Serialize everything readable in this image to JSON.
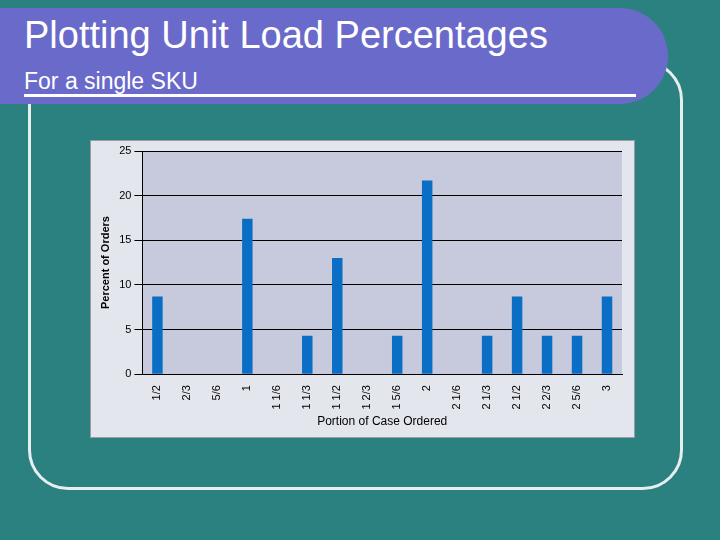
{
  "chart_data": {
    "type": "bar",
    "title": "Plotting Unit Load Percentages",
    "subtitle": "For a single SKU",
    "x_label": "Portion of Case Ordered",
    "y_label": "Percent of Orders",
    "categories": [
      "1/2",
      "2/3",
      "5/6",
      "1",
      "1 1/6",
      "1 1/3",
      "1 1/2",
      "1 2/3",
      "1 5/6",
      "2",
      "2 1/6",
      "2 1/3",
      "2 1/2",
      "2 2/3",
      "2 5/6",
      "3"
    ],
    "values": [
      8.7,
      0,
      0,
      17.4,
      0,
      4.3,
      13,
      0,
      4.3,
      21.7,
      0,
      4.3,
      8.7,
      4.3,
      4.3,
      8.7
    ],
    "color": "#0a6fc4",
    "ylim": [
      0,
      25
    ],
    "yticks": [
      0,
      5,
      10,
      15,
      20,
      25
    ],
    "grid": true
  }
}
